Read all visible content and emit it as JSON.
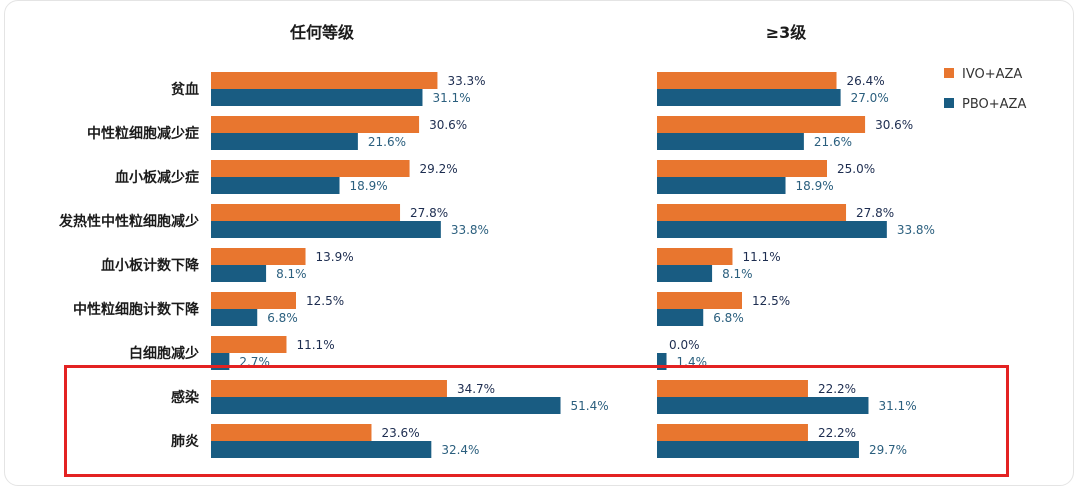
{
  "chart_data": [
    {
      "type": "bar",
      "orientation": "horizontal",
      "title": "任何等级",
      "categories": [
        "贫血",
        "中性粒细胞减少症",
        "血小板减少症",
        "发热性中性粒细胞减少",
        "血小板计数下降",
        "中性粒细胞计数下降",
        "白细胞减少",
        "感染",
        "肺炎"
      ],
      "series": [
        {
          "name": "IVO+AZA",
          "color": "#e8762f",
          "values": [
            33.3,
            30.6,
            29.2,
            27.8,
            13.9,
            12.5,
            11.1,
            34.7,
            23.6
          ],
          "labels": [
            "33.3%",
            "30.6%",
            "29.2%",
            "27.8%",
            "13.9%",
            "12.5%",
            "11.1%",
            "34.7%",
            "23.6%"
          ]
        },
        {
          "name": "PBO+AZA",
          "color": "#195c82",
          "values": [
            31.1,
            21.6,
            18.9,
            33.8,
            8.1,
            6.8,
            2.7,
            51.4,
            32.4
          ],
          "labels": [
            "31.1%",
            "21.6%",
            "18.9%",
            "33.8%",
            "8.1%",
            "6.8%",
            "2.7%",
            "51.4%",
            "32.4%"
          ]
        }
      ]
    },
    {
      "type": "bar",
      "orientation": "horizontal",
      "title": "≥3级",
      "categories": [
        "贫血",
        "中性粒细胞减少症",
        "血小板减少症",
        "发热性中性粒细胞减少",
        "血小板计数下降",
        "中性粒细胞计数下降",
        "白细胞减少",
        "感染",
        "肺炎"
      ],
      "series": [
        {
          "name": "IVO+AZA",
          "color": "#e8762f",
          "values": [
            26.4,
            30.6,
            25.0,
            27.8,
            11.1,
            12.5,
            0.0,
            22.2,
            22.2
          ],
          "labels": [
            "26.4%",
            "30.6%",
            "25.0%",
            "27.8%",
            "11.1%",
            "12.5%",
            "0.0%",
            "22.2%",
            "22.2%"
          ]
        },
        {
          "name": "PBO+AZA",
          "color": "#195c82",
          "values": [
            27.0,
            21.6,
            18.9,
            33.8,
            8.1,
            6.8,
            1.4,
            31.1,
            29.7
          ],
          "labels": [
            "27.0%",
            "21.6%",
            "18.9%",
            "33.8%",
            "8.1%",
            "6.8%",
            "1.4%",
            "31.1%",
            "29.7%"
          ]
        }
      ],
      "legend": {
        "placement": "top-right",
        "items": [
          "IVO+AZA",
          "PBO+AZA"
        ]
      }
    }
  ],
  "highlight": {
    "color": "#e32222",
    "categories": [
      "感染",
      "肺炎"
    ]
  }
}
